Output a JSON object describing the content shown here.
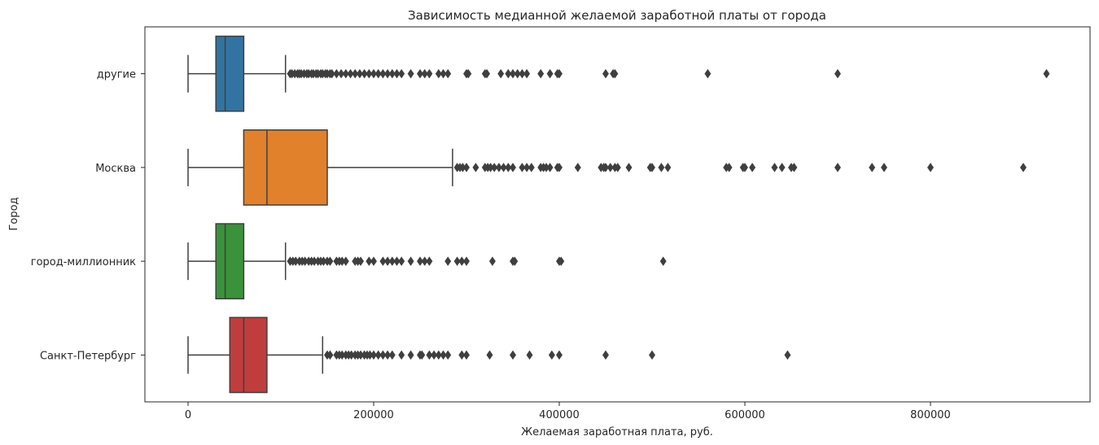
{
  "chart_data": {
    "type": "boxplot",
    "orientation": "horizontal",
    "title": "Зависимость медианной желаемой заработной платы от города",
    "xlabel": "Желаемая заработная плата, руб.",
    "ylabel": "Город",
    "xlim": [
      -48000,
      970000
    ],
    "xticks": [
      0,
      200000,
      400000,
      600000,
      800000
    ],
    "xtick_labels": [
      "0",
      "200000",
      "400000",
      "600000",
      "800000"
    ],
    "grid": false,
    "categories": [
      "другие",
      "Москва",
      "город-миллионник",
      "Санкт-Петербург"
    ],
    "colors": [
      "#3274a1",
      "#e1812c",
      "#3a923a",
      "#c03d3e"
    ],
    "series": [
      {
        "category": "другие",
        "whisker_low": 0,
        "q1": 30000,
        "median": 40000,
        "q3": 60000,
        "whisker_high": 105000,
        "outliers": [
          110000,
          112000,
          115000,
          118000,
          120000,
          122000,
          125000,
          128000,
          130000,
          133000,
          135000,
          138000,
          140000,
          143000,
          145000,
          148000,
          150000,
          153000,
          155000,
          160000,
          165000,
          170000,
          175000,
          180000,
          185000,
          190000,
          195000,
          200000,
          205000,
          210000,
          215000,
          220000,
          225000,
          230000,
          240000,
          250000,
          255000,
          260000,
          270000,
          275000,
          280000,
          300000,
          302000,
          320000,
          322000,
          337000,
          345000,
          350000,
          355000,
          360000,
          365000,
          380000,
          390000,
          398000,
          400000,
          450000,
          458000,
          460000,
          560000,
          700000,
          925000
        ]
      },
      {
        "category": "Москва",
        "whisker_low": 0,
        "q1": 60000,
        "median": 85000,
        "q3": 150000,
        "whisker_high": 285000,
        "outliers": [
          290000,
          293000,
          296000,
          300000,
          310000,
          320000,
          323000,
          326000,
          330000,
          335000,
          340000,
          345000,
          350000,
          360000,
          365000,
          370000,
          380000,
          383000,
          386000,
          390000,
          398000,
          400000,
          420000,
          445000,
          448000,
          450000,
          455000,
          460000,
          463000,
          475000,
          498000,
          500000,
          510000,
          517000,
          580000,
          583000,
          598000,
          600000,
          608000,
          632000,
          640000,
          650000,
          653000,
          700000,
          737000,
          750000,
          800000,
          900000
        ]
      },
      {
        "category": "город-миллионник",
        "whisker_low": 0,
        "q1": 30000,
        "median": 40000,
        "q3": 60000,
        "whisker_high": 105000,
        "outliers": [
          110000,
          113000,
          116000,
          120000,
          123000,
          126000,
          130000,
          133000,
          136000,
          140000,
          143000,
          146000,
          150000,
          153000,
          160000,
          163000,
          166000,
          170000,
          180000,
          183000,
          186000,
          195000,
          200000,
          210000,
          215000,
          220000,
          225000,
          230000,
          240000,
          250000,
          255000,
          260000,
          280000,
          290000,
          295000,
          300000,
          328000,
          350000,
          352000,
          400000,
          402000,
          512000
        ]
      },
      {
        "category": "Санкт-Петербург",
        "whisker_low": 0,
        "q1": 45000,
        "median": 60000,
        "q3": 85000,
        "whisker_high": 145000,
        "outliers": [
          150000,
          153000,
          160000,
          163000,
          166000,
          170000,
          173000,
          176000,
          180000,
          183000,
          186000,
          190000,
          193000,
          196000,
          200000,
          205000,
          210000,
          215000,
          220000,
          230000,
          240000,
          250000,
          252000,
          260000,
          265000,
          270000,
          275000,
          280000,
          295000,
          300000,
          325000,
          350000,
          368000,
          392000,
          400000,
          450000,
          500000,
          646000
        ]
      }
    ]
  }
}
